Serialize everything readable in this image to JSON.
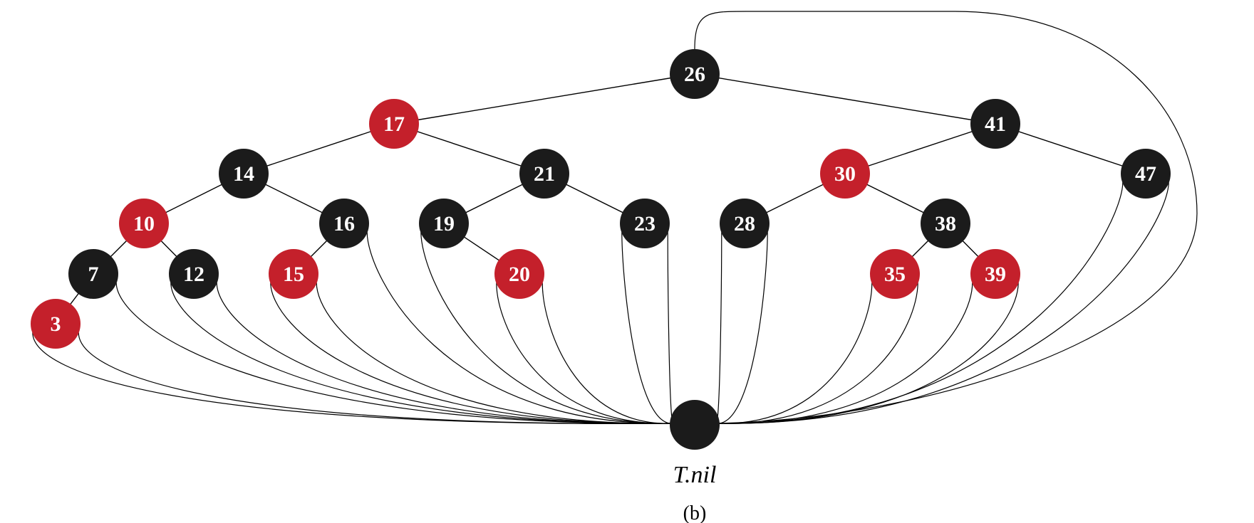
{
  "colors": {
    "red": "#c4202b",
    "black": "#1b1b1b"
  },
  "tree": {
    "nodes": [
      {
        "id": "n26",
        "key": "26",
        "color": "black",
        "parent": null
      },
      {
        "id": "n17",
        "key": "17",
        "color": "red",
        "parent": "n26"
      },
      {
        "id": "n41",
        "key": "41",
        "color": "black",
        "parent": "n26"
      },
      {
        "id": "n14",
        "key": "14",
        "color": "black",
        "parent": "n17"
      },
      {
        "id": "n21",
        "key": "21",
        "color": "black",
        "parent": "n17"
      },
      {
        "id": "n30",
        "key": "30",
        "color": "red",
        "parent": "n41"
      },
      {
        "id": "n47",
        "key": "47",
        "color": "black",
        "parent": "n41"
      },
      {
        "id": "n10",
        "key": "10",
        "color": "red",
        "parent": "n14"
      },
      {
        "id": "n16",
        "key": "16",
        "color": "black",
        "parent": "n14"
      },
      {
        "id": "n19",
        "key": "19",
        "color": "black",
        "parent": "n21"
      },
      {
        "id": "n23",
        "key": "23",
        "color": "black",
        "parent": "n21"
      },
      {
        "id": "n28",
        "key": "28",
        "color": "black",
        "parent": "n30"
      },
      {
        "id": "n38",
        "key": "38",
        "color": "black",
        "parent": "n30"
      },
      {
        "id": "n7",
        "key": "7",
        "color": "black",
        "parent": "n10"
      },
      {
        "id": "n12",
        "key": "12",
        "color": "black",
        "parent": "n10"
      },
      {
        "id": "n15",
        "key": "15",
        "color": "red",
        "parent": "n16"
      },
      {
        "id": "n20",
        "key": "20",
        "color": "red",
        "parent": "n19"
      },
      {
        "id": "n35",
        "key": "35",
        "color": "red",
        "parent": "n38"
      },
      {
        "id": "n39",
        "key": "39",
        "color": "red",
        "parent": "n38"
      },
      {
        "id": "n3",
        "key": "3",
        "color": "red",
        "parent": "n7"
      }
    ]
  },
  "sentinel": {
    "label": "T.nil",
    "color": "black"
  },
  "caption": "(b)"
}
